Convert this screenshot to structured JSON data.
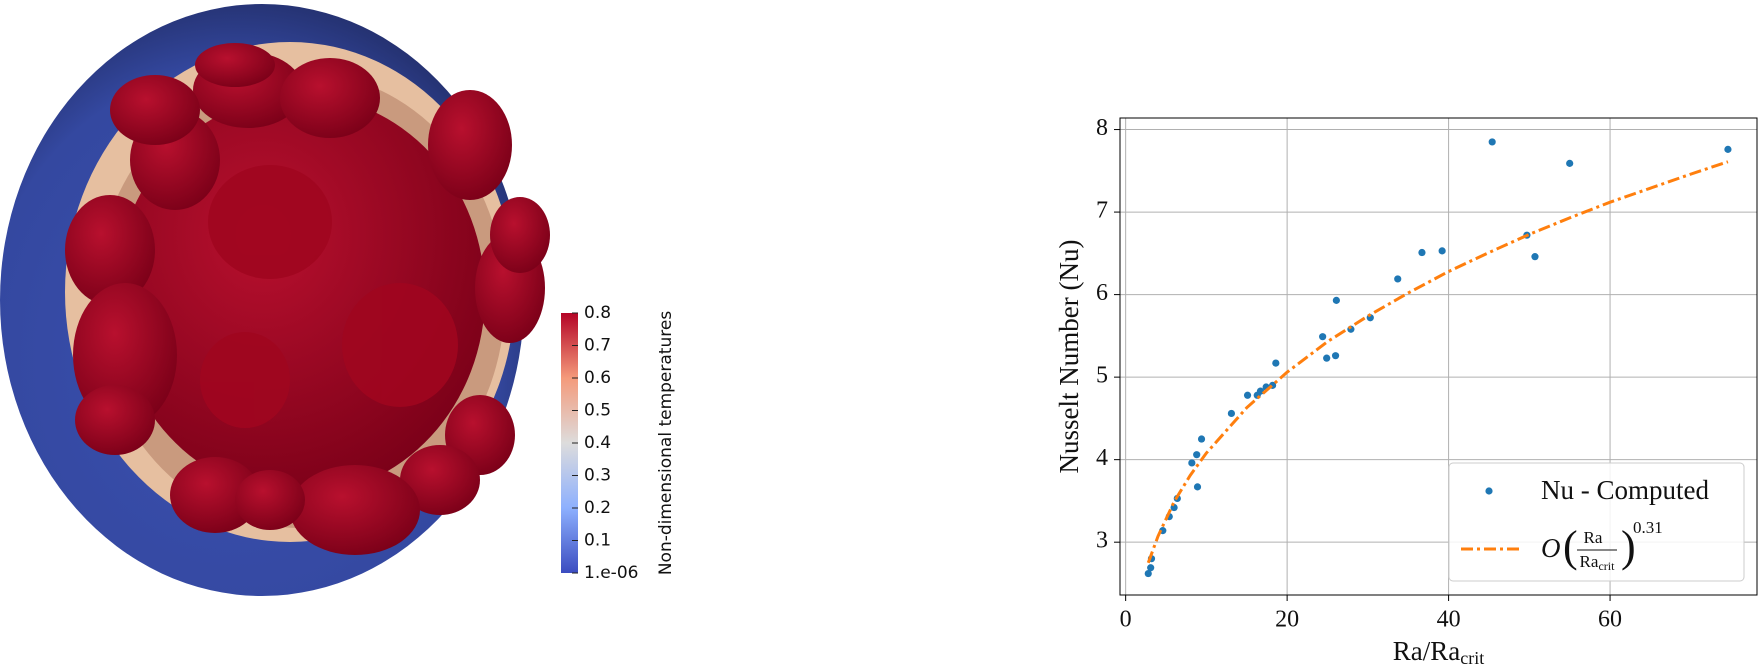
{
  "colorbar": {
    "title": "Non-dimensional temperatures",
    "range": [
      1e-06,
      0.8
    ],
    "ticks": [
      {
        "value": 1e-06,
        "label": "1.e-06"
      },
      0.1,
      0.2,
      0.3,
      0.4,
      0.5,
      0.6,
      0.7,
      0.8
    ]
  },
  "chart_data": {
    "type": "scatter",
    "x_label": "Ra/Ra",
    "x_label_sub": "crit",
    "y_label": "Nusselt Number (Nu)",
    "xlim": [
      -0.7,
      78.2
    ],
    "ylim": [
      2.36,
      8.14
    ],
    "xticks": [
      0,
      20,
      40,
      60
    ],
    "yticks": [
      3,
      4,
      5,
      6,
      7,
      8
    ],
    "grid": true,
    "legend": "lower right",
    "series": [
      {
        "name": "Nu - Computed",
        "color": "#1f77b4",
        "mode": "markers",
        "x": [
          2.8,
          3.1,
          3.2,
          4.6,
          5.4,
          6.0,
          6.4,
          8.2,
          8.8,
          8.9,
          9.4,
          13.1,
          15.1,
          16.3,
          16.7,
          17.4,
          18.2,
          18.6,
          24.4,
          24.9,
          26.0,
          26.1,
          27.9,
          30.3,
          33.7,
          36.7,
          39.2,
          45.4,
          49.7,
          50.7,
          55.0,
          74.6
        ],
        "values": [
          2.62,
          2.69,
          2.8,
          3.14,
          3.31,
          3.42,
          3.53,
          3.96,
          4.06,
          3.67,
          4.25,
          4.56,
          4.78,
          4.78,
          4.83,
          4.88,
          4.9,
          5.17,
          5.49,
          5.23,
          5.26,
          5.93,
          5.58,
          5.72,
          6.19,
          6.51,
          6.53,
          7.85,
          6.72,
          6.46,
          7.59,
          7.76
        ]
      },
      {
        "legend_label": {
          "prefix": "O",
          "numerator": "Ra",
          "denominator": "Ra",
          "denominator_sub": "crit",
          "exponent": "0.31"
        },
        "color": "#ff7f0e",
        "mode": "line",
        "style": "dashdot",
        "x": [
          2.8,
          4,
          6,
          8,
          10,
          15,
          20,
          25,
          30,
          35,
          40,
          45,
          50,
          55,
          60,
          65,
          70,
          74.6
        ],
        "values": [
          2.75,
          3.07,
          3.49,
          3.81,
          4.08,
          4.63,
          5.06,
          5.43,
          5.74,
          6.02,
          6.28,
          6.51,
          6.73,
          6.93,
          7.12,
          7.29,
          7.46,
          7.61
        ]
      }
    ]
  }
}
